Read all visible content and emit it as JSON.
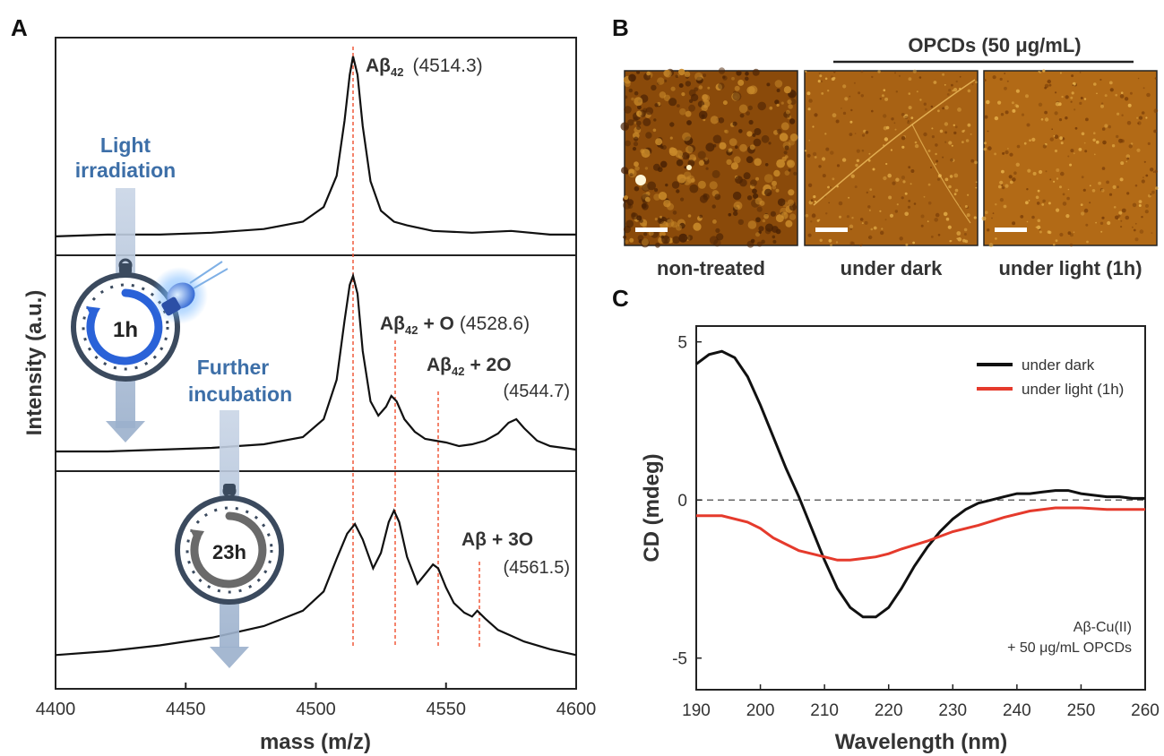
{
  "panels": {
    "a": {
      "letter": "A"
    },
    "b": {
      "letter": "B"
    },
    "c": {
      "letter": "C"
    }
  },
  "panel_a": {
    "x_axis_label": "mass (m/z)",
    "y_axis_label": "Intensity (a.u.)",
    "x_ticks": [
      "4400",
      "4450",
      "4500",
      "4550",
      "4600"
    ],
    "light_label_line1": "Light",
    "light_label_line2": "irradiation",
    "further_label_line1": "Further",
    "further_label_line2": "incubation",
    "timer1": "1h",
    "timer2": "23h",
    "peaks": {
      "p0_main": "Aβ",
      "p0_sub": "42",
      "p0_mass": "(4514.3)",
      "p1_main": "Aβ",
      "p1_sub": "42",
      "p1_suffix": "+ O",
      "p1_mass": "(4528.6)",
      "p2_main": "Aβ",
      "p2_sub": "42",
      "p2_suffix": "+ 2O",
      "p2_mass": "(4544.7)",
      "p3_main": "Aβ",
      "p3_suffix": "+ 3O",
      "p3_mass": "(4561.5)"
    }
  },
  "panel_b": {
    "group_label": "OPCDs (50 μg/mL)",
    "images": [
      {
        "label": "non-treated",
        "color_base": "#8a4a0a"
      },
      {
        "label": "under dark",
        "color_base": "#a86214"
      },
      {
        "label": "under light (1h)",
        "color_base": "#b26a16"
      }
    ]
  },
  "panel_c": {
    "annotation_line1": "Aβ-Cu(II)",
    "annotation_line2": "+ 50 μg/mL OPCDs"
  },
  "chart_data": [
    {
      "type": "line",
      "panel": "A-top",
      "xlim": [
        4400,
        4600
      ],
      "series": [
        {
          "x": [
            4400,
            4420,
            4440,
            4460,
            4480,
            4495,
            4503,
            4508,
            4511,
            4513,
            4514.3,
            4516,
            4518,
            4521,
            4525,
            4530,
            4535,
            4545,
            4560,
            4575,
            4590,
            4600
          ],
          "y": [
            0.02,
            0.03,
            0.03,
            0.04,
            0.06,
            0.1,
            0.18,
            0.35,
            0.65,
            0.9,
            1.0,
            0.9,
            0.62,
            0.32,
            0.16,
            0.1,
            0.08,
            0.05,
            0.04,
            0.05,
            0.03,
            0.03
          ]
        }
      ]
    },
    {
      "type": "line",
      "panel": "A-middle",
      "xlim": [
        4400,
        4600
      ],
      "series": [
        {
          "x": [
            4400,
            4420,
            4440,
            4460,
            4480,
            4495,
            4503,
            4508,
            4511,
            4513,
            4514.3,
            4516,
            4518,
            4521,
            4524,
            4527,
            4529,
            4531,
            4534,
            4538,
            4542,
            4546,
            4550,
            4555,
            4560,
            4565,
            4570,
            4574,
            4577,
            4580,
            4585,
            4590,
            4600
          ],
          "y": [
            0.02,
            0.02,
            0.03,
            0.04,
            0.06,
            0.1,
            0.2,
            0.42,
            0.75,
            0.95,
            1.0,
            0.9,
            0.58,
            0.3,
            0.22,
            0.27,
            0.33,
            0.3,
            0.2,
            0.13,
            0.09,
            0.08,
            0.07,
            0.05,
            0.06,
            0.08,
            0.12,
            0.18,
            0.2,
            0.15,
            0.08,
            0.05,
            0.03
          ]
        }
      ]
    },
    {
      "type": "line",
      "panel": "A-bottom",
      "xlim": [
        4400,
        4600
      ],
      "series": [
        {
          "x": [
            4400,
            4420,
            4440,
            4460,
            4480,
            4495,
            4503,
            4508,
            4512,
            4515,
            4518,
            4522,
            4525,
            4528,
            4530,
            4532,
            4535,
            4539,
            4542,
            4545,
            4547,
            4550,
            4553,
            4557,
            4560,
            4562,
            4565,
            4570,
            4575,
            4580,
            4590,
            4600
          ],
          "y": [
            0.05,
            0.07,
            0.1,
            0.14,
            0.2,
            0.28,
            0.38,
            0.55,
            0.68,
            0.73,
            0.65,
            0.5,
            0.58,
            0.74,
            0.8,
            0.74,
            0.56,
            0.42,
            0.47,
            0.52,
            0.5,
            0.4,
            0.32,
            0.27,
            0.25,
            0.28,
            0.24,
            0.18,
            0.15,
            0.12,
            0.08,
            0.05
          ]
        }
      ]
    },
    {
      "type": "line",
      "panel": "C",
      "xlabel": "Wavelength (nm)",
      "ylabel": "CD (mdeg)",
      "xlim": [
        190,
        260
      ],
      "ylim": [
        -6,
        5.5
      ],
      "x_ticks": [
        "190",
        "200",
        "210",
        "220",
        "230",
        "240",
        "250",
        "260"
      ],
      "y_ticks": [
        {
          "value": 5,
          "label": "5"
        },
        {
          "value": 0,
          "label": "0"
        },
        {
          "value": -5,
          "label": "-5"
        }
      ],
      "series": [
        {
          "name": "under dark",
          "color": "#111111",
          "x": [
            190,
            192,
            194,
            196,
            198,
            200,
            202,
            204,
            206,
            208,
            210,
            212,
            214,
            216,
            218,
            220,
            222,
            224,
            226,
            228,
            230,
            232,
            234,
            236,
            238,
            240,
            242,
            244,
            246,
            248,
            250,
            252,
            254,
            256,
            258,
            260
          ],
          "y": [
            4.3,
            4.6,
            4.7,
            4.5,
            3.9,
            3.0,
            2.0,
            1.0,
            0.1,
            -0.9,
            -1.9,
            -2.8,
            -3.4,
            -3.7,
            -3.7,
            -3.4,
            -2.8,
            -2.1,
            -1.5,
            -1.0,
            -0.6,
            -0.3,
            -0.1,
            0.0,
            0.1,
            0.2,
            0.2,
            0.25,
            0.3,
            0.3,
            0.2,
            0.15,
            0.1,
            0.1,
            0.05,
            0.05
          ]
        },
        {
          "name": "under light (1h)",
          "color": "#e53a2c",
          "x": [
            190,
            194,
            198,
            200,
            202,
            204,
            206,
            208,
            210,
            212,
            214,
            216,
            218,
            220,
            222,
            226,
            230,
            234,
            238,
            242,
            246,
            250,
            254,
            258,
            260
          ],
          "y": [
            -0.5,
            -0.5,
            -0.7,
            -0.9,
            -1.2,
            -1.4,
            -1.6,
            -1.7,
            -1.8,
            -1.9,
            -1.9,
            -1.85,
            -1.8,
            -1.7,
            -1.55,
            -1.3,
            -1.0,
            -0.8,
            -0.55,
            -0.35,
            -0.25,
            -0.25,
            -0.3,
            -0.3,
            -0.3
          ]
        }
      ],
      "legend_position": "top-right"
    }
  ]
}
